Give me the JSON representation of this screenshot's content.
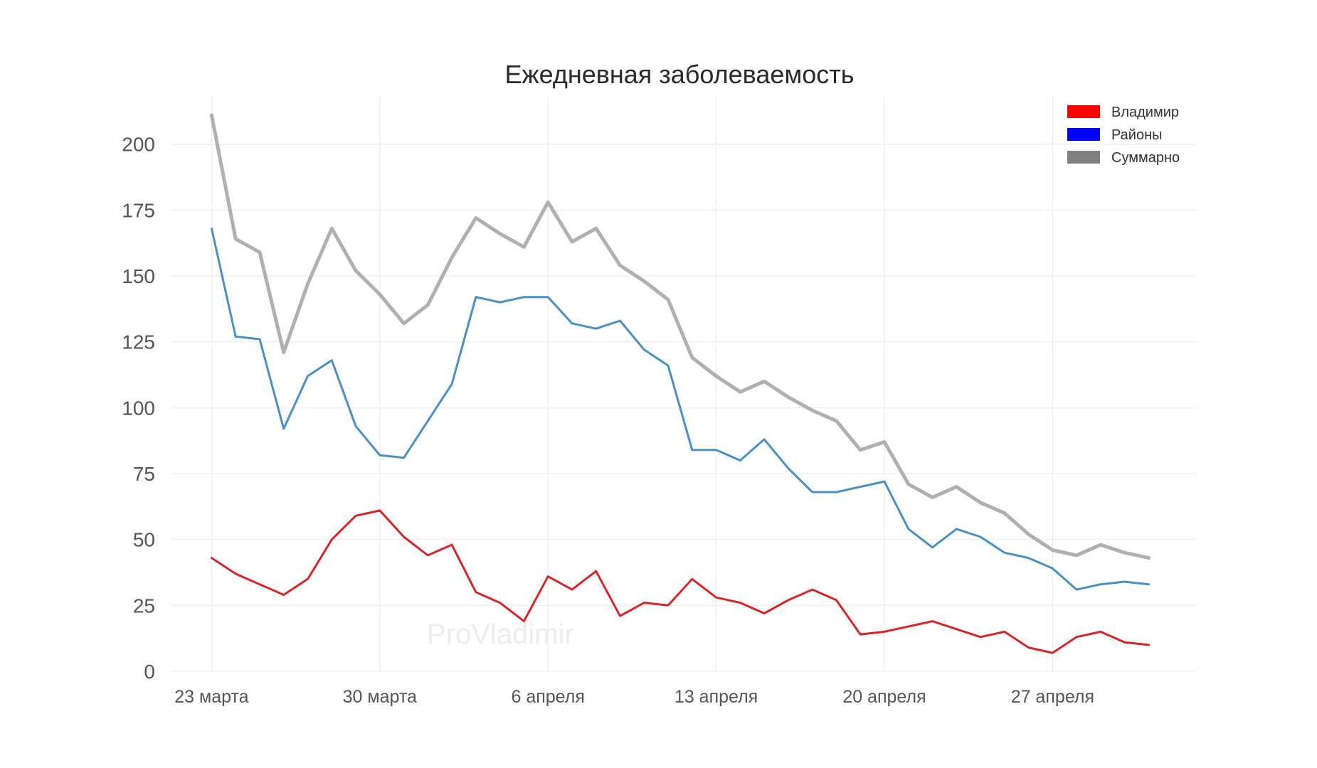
{
  "chart_data": {
    "type": "line",
    "title": "Ежедневная заболеваемость",
    "watermark": "ProVladimir",
    "xlabel": "",
    "ylabel": "",
    "x_start": "23 марта",
    "x_end": "2 мая",
    "x_tick_labels": [
      "23 марта",
      "30 марта",
      "6 апреля",
      "13 апреля",
      "20 апреля",
      "27 апреля"
    ],
    "x_tick_days": [
      0,
      7,
      14,
      21,
      28,
      35
    ],
    "y_ticks": [
      0,
      25,
      50,
      75,
      100,
      125,
      150,
      175,
      200
    ],
    "ylim": [
      0,
      218
    ],
    "xlim_days": [
      -1.7,
      41.0
    ],
    "grid": true,
    "legend_position": "top-right",
    "series": [
      {
        "name": "Владимир",
        "color": "#d62728",
        "legend_color": "#ff0000",
        "line_width": 3,
        "values": [
          43,
          37,
          33,
          29,
          35,
          50,
          59,
          61,
          51,
          44,
          48,
          30,
          26,
          19,
          36,
          31,
          38,
          21,
          26,
          25,
          35,
          28,
          26,
          22,
          27,
          31,
          27,
          14,
          15,
          17,
          19,
          16,
          13,
          15,
          9,
          7,
          13,
          15,
          11,
          10
        ]
      },
      {
        "name": "Районы",
        "color": "#4a90c4",
        "legend_color": "#0000ff",
        "line_width": 3,
        "values": [
          168,
          127,
          126,
          92,
          112,
          118,
          93,
          82,
          81,
          95,
          109,
          142,
          140,
          142,
          142,
          132,
          130,
          133,
          122,
          116,
          84,
          84,
          80,
          88,
          77,
          68,
          68,
          70,
          72,
          54,
          47,
          54,
          51,
          45,
          43,
          39,
          31,
          33,
          34,
          33
        ]
      },
      {
        "name": "Суммарно",
        "color": "#b0b0b0",
        "legend_color": "#808080",
        "line_width": 5,
        "values": [
          211,
          164,
          159,
          121,
          147,
          168,
          152,
          143,
          132,
          139,
          157,
          172,
          166,
          161,
          178,
          163,
          168,
          154,
          148,
          141,
          119,
          112,
          106,
          110,
          104,
          99,
          95,
          84,
          87,
          71,
          66,
          70,
          64,
          60,
          52,
          46,
          44,
          48,
          45,
          43
        ]
      }
    ]
  }
}
